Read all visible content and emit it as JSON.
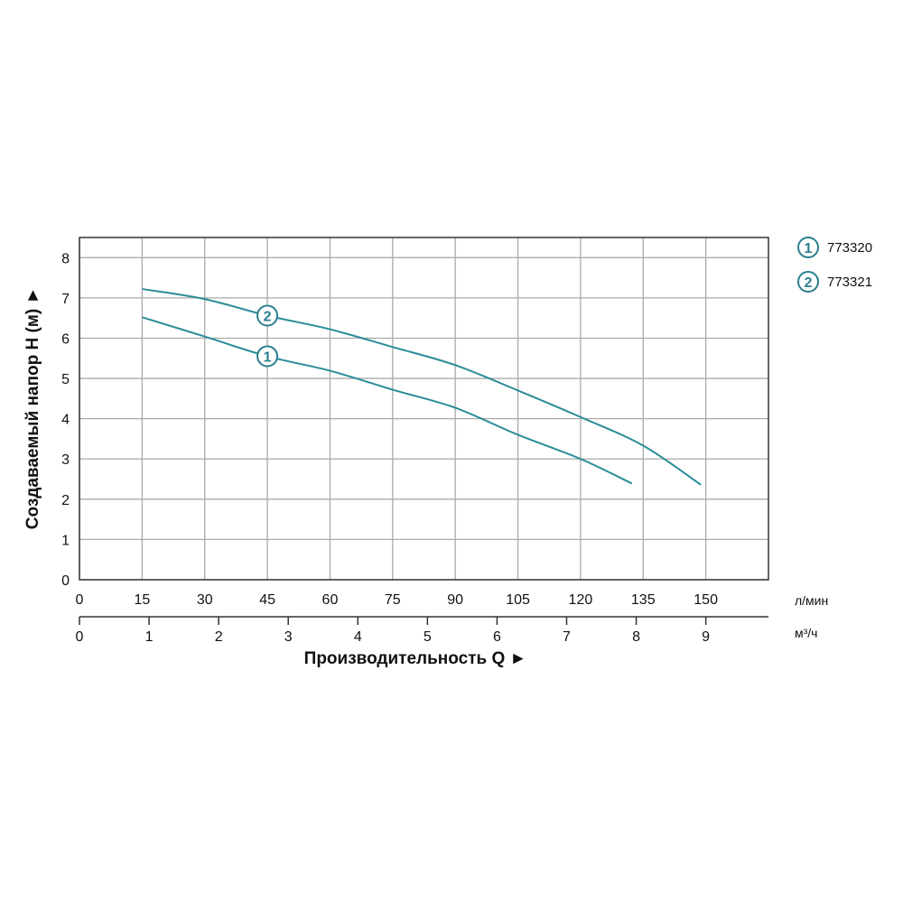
{
  "chart_data": {
    "type": "line",
    "xlabel": "Производительность Q ►",
    "ylabel": "Создаваемый напор H (м) ►",
    "x_unit": "л/мин",
    "x2_unit": "м³/ч",
    "xlim": [
      0,
      165
    ],
    "ylim": [
      0,
      8.5
    ],
    "x_ticks": [
      "0",
      "15",
      "30",
      "45",
      "60",
      "75",
      "90",
      "105",
      "120",
      "135",
      "150"
    ],
    "x2_ticks": [
      "0",
      "1",
      "2",
      "3",
      "4",
      "5",
      "6",
      "7",
      "8",
      "9"
    ],
    "y_ticks": [
      "0",
      "1",
      "2",
      "3",
      "4",
      "5",
      "6",
      "7",
      "8"
    ],
    "grid": true,
    "legend_position": "top-right",
    "line_color": "#2a8c99",
    "series": [
      {
        "name": "773320",
        "badge": "1",
        "x": [
          15,
          30,
          45,
          60,
          75,
          90,
          105,
          120,
          132.3
        ],
        "y": [
          6.52,
          6.04,
          5.55,
          5.19,
          4.72,
          4.27,
          3.6,
          3.0,
          2.39
        ]
      },
      {
        "name": "773321",
        "badge": "2",
        "x": [
          15,
          30,
          45,
          60,
          75,
          90,
          105,
          120,
          135,
          148.8
        ],
        "y": [
          7.22,
          6.97,
          6.56,
          6.22,
          5.78,
          5.33,
          4.7,
          4.04,
          3.33,
          2.36
        ]
      }
    ]
  }
}
